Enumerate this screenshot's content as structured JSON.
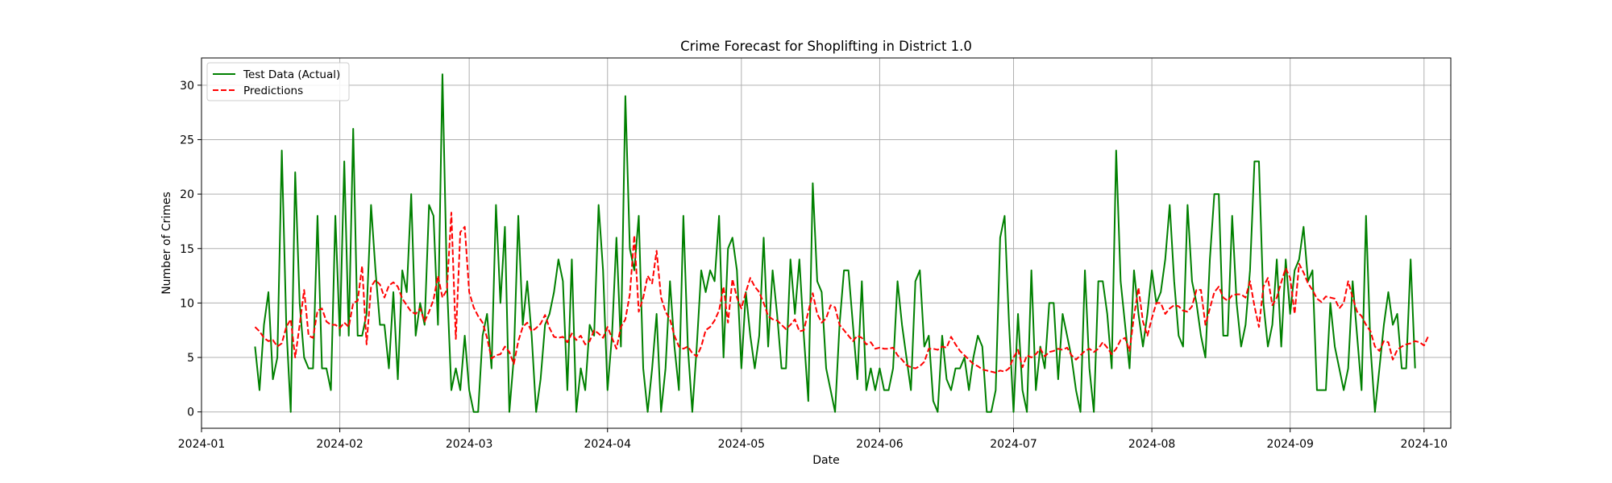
{
  "chart_data": {
    "type": "line",
    "title": "Crime Forecast for Shoplifting in District 1.0",
    "xlabel": "Date",
    "ylabel": "Number of Crimes",
    "x_axis": {
      "type": "date",
      "range": [
        "2024-01-01",
        "2024-10-07"
      ],
      "ticks": [
        "2024-01-01",
        "2024-02-01",
        "2024-03-01",
        "2024-04-01",
        "2024-05-01",
        "2024-06-01",
        "2024-07-01",
        "2024-08-01",
        "2024-09-01",
        "2024-10-01"
      ],
      "tick_labels": [
        "2024-01",
        "2024-02",
        "2024-03",
        "2024-04",
        "2024-05",
        "2024-06",
        "2024-07",
        "2024-08",
        "2024-09",
        "2024-10"
      ]
    },
    "y_axis": {
      "range": [
        -1.5,
        32.5
      ],
      "ticks": [
        0,
        5,
        10,
        15,
        20,
        25,
        30
      ],
      "tick_labels": [
        "0",
        "5",
        "10",
        "15",
        "20",
        "25",
        "30"
      ]
    },
    "grid": true,
    "legend_position": "top-left",
    "start_date": "2024-01-13",
    "series": [
      {
        "name": "Test Data (Actual)",
        "color": "#008000",
        "style": "solid",
        "values": [
          6,
          2,
          8,
          11,
          3,
          5,
          24,
          8,
          0,
          22,
          10,
          5,
          4,
          4,
          18,
          4,
          4,
          2,
          18,
          7,
          23,
          7,
          26,
          7,
          7,
          9,
          19,
          13,
          8,
          8,
          4,
          11,
          3,
          13,
          11,
          20,
          7,
          10,
          8,
          19,
          18,
          8,
          31,
          12,
          2,
          4,
          2,
          7,
          2,
          0,
          0,
          7,
          9,
          4,
          19,
          10,
          17,
          0,
          5,
          18,
          8,
          12,
          7,
          0,
          3,
          8,
          9,
          11,
          14,
          12,
          2,
          14,
          0,
          4,
          2,
          8,
          7,
          19,
          13,
          2,
          7,
          16,
          6,
          29,
          15,
          13,
          18,
          4,
          0,
          4,
          9,
          0,
          4,
          12,
          6,
          2,
          18,
          6,
          0,
          6,
          13,
          11,
          13,
          12,
          18,
          5,
          15,
          16,
          13,
          4,
          11,
          7,
          4,
          7,
          16,
          6,
          13,
          9,
          4,
          4,
          14,
          9,
          14,
          7,
          1,
          21,
          12,
          11,
          4,
          2,
          0,
          8,
          13,
          13,
          8,
          3,
          12,
          2,
          4,
          2,
          4,
          2,
          2,
          4,
          12,
          8,
          5,
          2,
          12,
          13,
          6,
          7,
          1,
          0,
          7,
          3,
          2,
          4,
          4,
          5,
          2,
          5,
          7,
          6,
          0,
          0,
          2,
          16,
          18,
          8,
          0,
          9,
          2,
          0,
          13,
          2,
          6,
          4,
          10,
          10,
          3,
          9,
          7,
          5,
          2,
          0,
          13,
          4,
          0,
          12,
          12,
          9,
          4,
          24,
          12,
          8,
          4,
          13,
          9,
          6,
          9,
          13,
          10,
          11,
          14,
          19,
          12,
          7,
          6,
          19,
          12,
          10,
          7,
          5,
          14,
          20,
          20,
          7,
          7,
          18,
          10,
          6,
          8,
          13,
          23,
          23,
          10,
          6,
          8,
          14,
          6,
          14,
          9,
          13,
          14,
          17,
          12,
          13,
          2,
          2,
          2,
          10,
          6,
          4,
          2,
          4,
          12,
          7,
          2,
          18,
          6,
          0,
          4,
          8,
          11,
          8,
          9,
          4,
          4,
          14,
          4
        ]
      },
      {
        "name": "Predictions",
        "color": "#ff0000",
        "style": "dashed",
        "values": [
          7.8,
          7.4,
          6.8,
          6.5,
          6.6,
          6,
          6.3,
          7.8,
          8.5,
          5,
          8,
          11.2,
          7,
          6.8,
          9.3,
          9.5,
          8.3,
          8,
          8,
          7.7,
          8.2,
          7.8,
          10,
          10.2,
          13.4,
          6.2,
          11.5,
          12.1,
          11.7,
          10.5,
          11.6,
          11.9,
          11.5,
          10.4,
          9.8,
          9.2,
          9,
          9.5,
          8.3,
          9.2,
          10.3,
          12.5,
          10.5,
          11.2,
          18.3,
          6.7,
          16.5,
          17,
          11,
          9.6,
          8.8,
          8.2,
          6.8,
          4.9,
          5.2,
          5.3,
          6,
          5.5,
          4.4,
          6.5,
          7.8,
          8.2,
          7.4,
          7.7,
          8.1,
          8.9,
          7.7,
          6.9,
          6.8,
          6.9,
          6.4,
          7.2,
          6.6,
          7,
          6.2,
          6.5,
          7.5,
          7.2,
          6.8,
          7.8,
          6.8,
          5.8,
          7.8,
          8.5,
          10.8,
          16.2,
          9.2,
          10.5,
          12.5,
          11.8,
          14.8,
          10.5,
          9.2,
          8.5,
          7,
          6,
          5.8,
          6,
          5.4,
          5.1,
          6,
          7.5,
          7.8,
          8.4,
          9.3,
          11.5,
          8.2,
          12.2,
          10.5,
          9.5,
          11,
          12.3,
          11.5,
          11,
          10,
          8.8,
          8.5,
          8.4,
          8,
          7.6,
          8,
          8.5,
          7.4,
          7.5,
          9.2,
          10.9,
          9,
          8.2,
          8.6,
          9.8,
          9.6,
          8,
          7.5,
          7,
          6.5,
          7,
          6.8,
          6.2,
          6.4,
          5.8,
          5.9,
          5.8,
          5.8,
          5.9,
          5.2,
          4.8,
          4.3,
          4.1,
          4,
          4.2,
          4.6,
          5.8,
          5.8,
          5.7,
          6,
          5.9,
          6.9,
          6.2,
          5.6,
          5.2,
          4.8,
          4.4,
          4.2,
          3.9,
          3.8,
          3.7,
          3.6,
          3.8,
          3.7,
          4,
          5,
          5.7,
          4.1,
          5.2,
          5,
          5.3,
          5.8,
          5.1,
          5.5,
          5.6,
          5.8,
          5.7,
          5.9,
          5.2,
          4.8,
          5.2,
          5.6,
          5.8,
          5.5,
          5.8,
          6.4,
          5.9,
          5.3,
          5.8,
          6.6,
          6.8,
          5.6,
          8.8,
          11.4,
          8.3,
          7,
          8.6,
          10,
          10,
          9,
          9.5,
          9.8,
          9.7,
          9.3,
          9.2,
          9.7,
          11.2,
          11.2,
          8,
          9.5,
          11,
          11.5,
          10.5,
          10.2,
          10.7,
          10.8,
          10.8,
          10.5,
          12,
          9.7,
          7.8,
          11.5,
          12.3,
          9.8,
          10.5,
          11.9,
          13.2,
          12.3,
          9,
          13.6,
          12.8,
          11.8,
          11.2,
          10.4,
          10.1,
          10.6,
          10.5,
          10.4,
          9.5,
          10,
          12,
          10.5,
          9.2,
          8.8,
          8,
          7.4,
          6,
          5.6,
          6.5,
          6.4,
          4.8,
          5.7,
          6,
          6.2,
          6.3,
          6.5,
          6.4,
          6.1,
          7
        ]
      }
    ]
  }
}
